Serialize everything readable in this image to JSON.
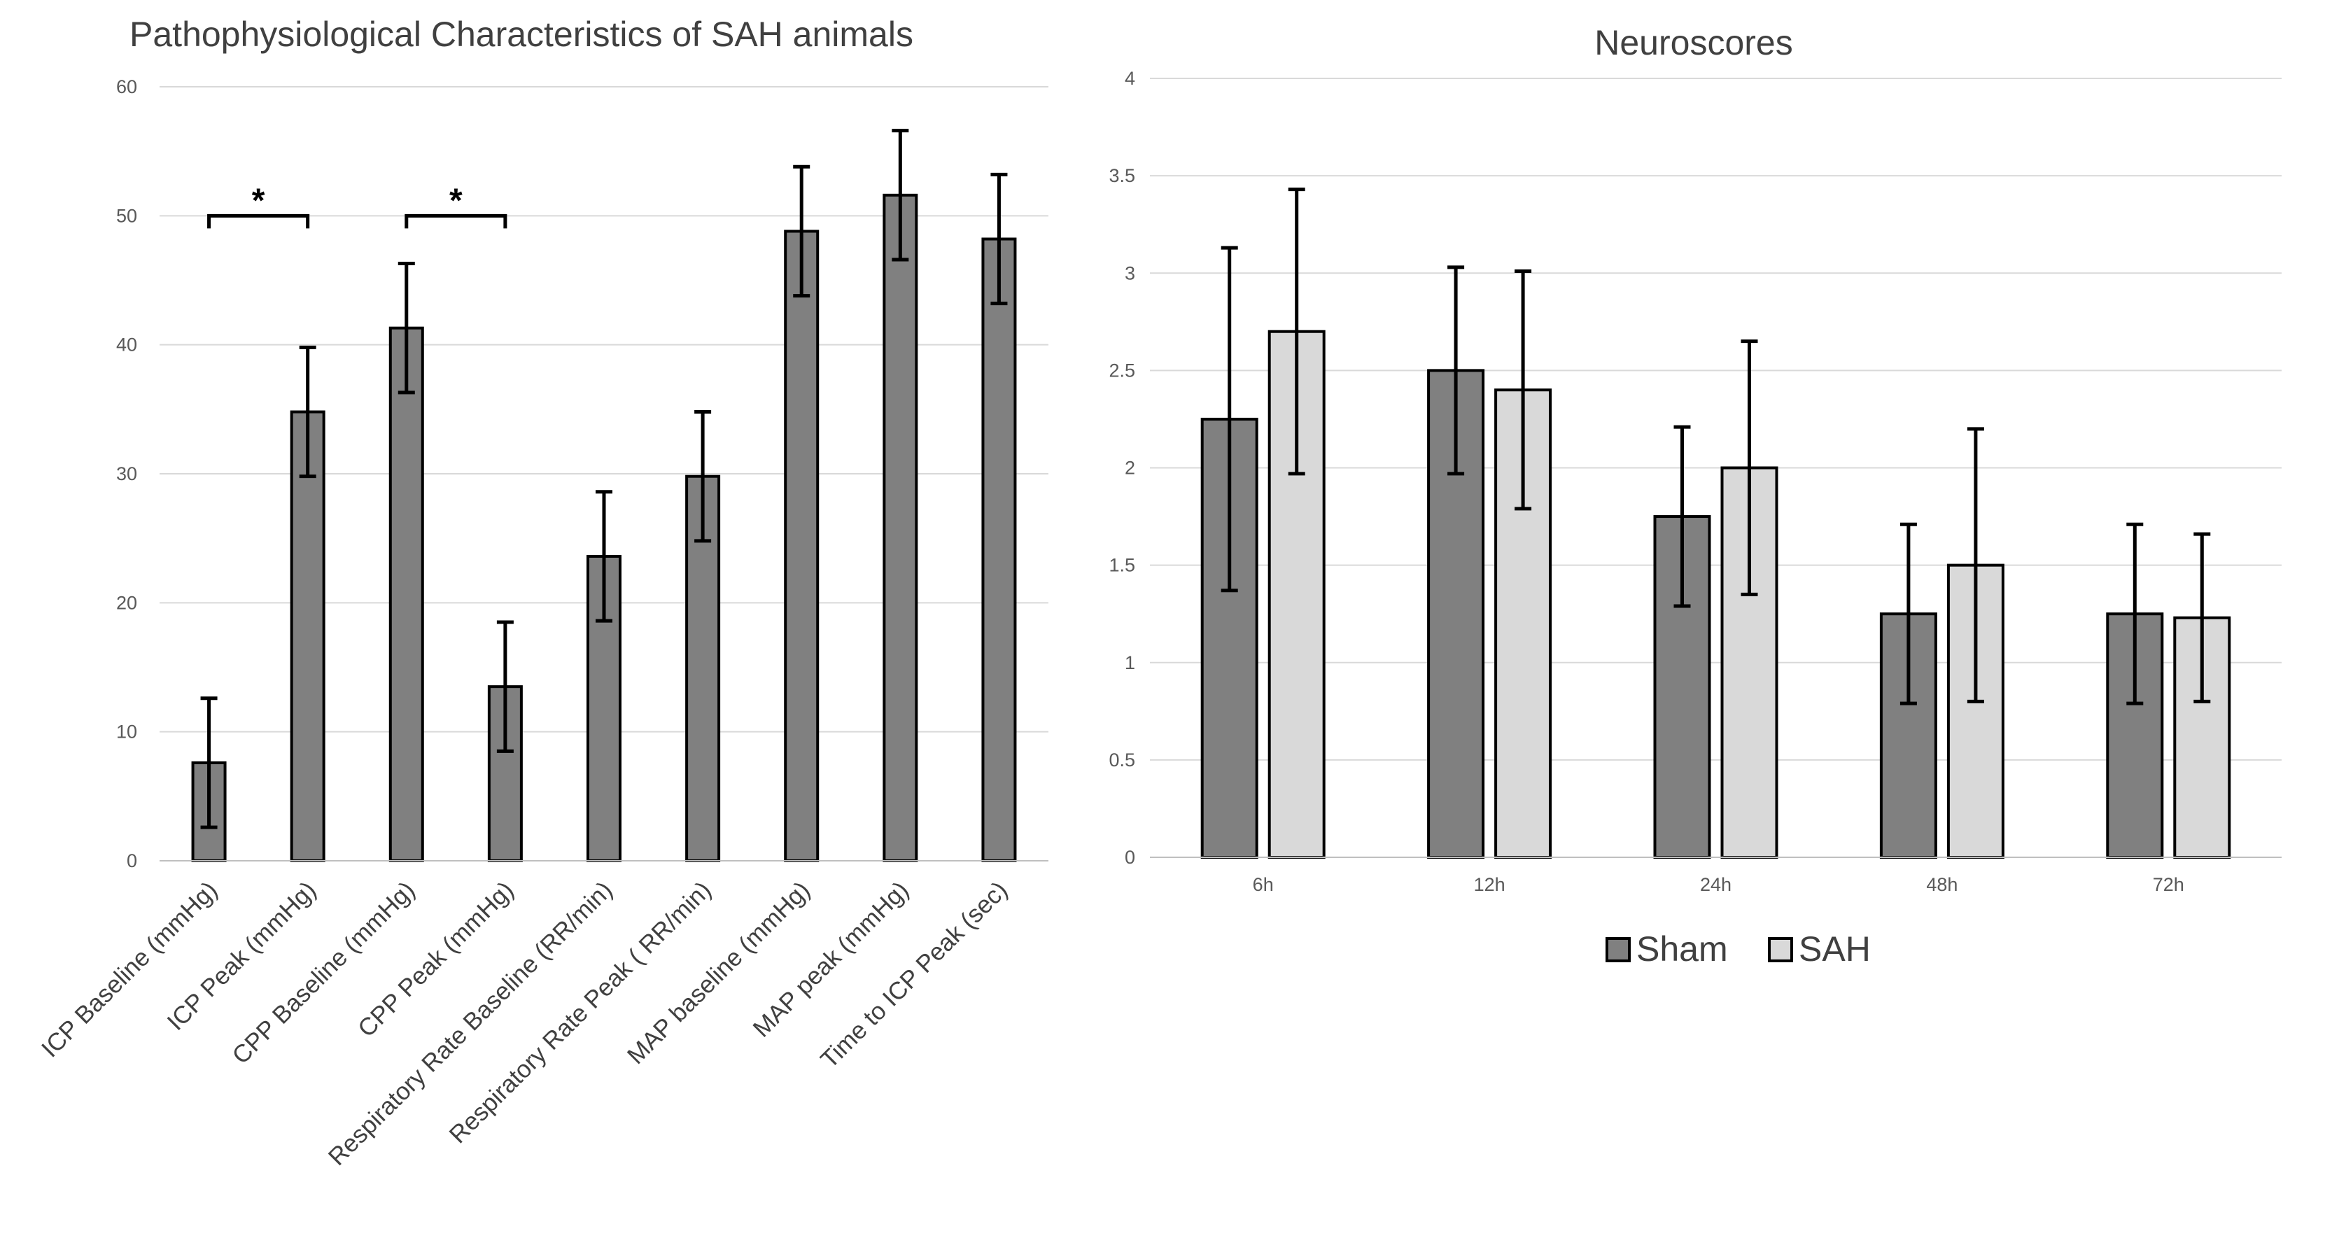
{
  "chart_data": [
    {
      "type": "bar",
      "title": "Pathophysiological Characteristics of SAH animals",
      "xlabel": "",
      "ylabel": "",
      "ylim": [
        0,
        60
      ],
      "yticks": [
        "0",
        "10",
        "20",
        "30",
        "40",
        "50",
        "60"
      ],
      "grid": true,
      "bar_color": "#808080",
      "categories": [
        "ICP Baseline (mmHg)",
        "ICP Peak (mmHg)",
        "CPP Baseline (mmHg)",
        "CPP Peak (mmHg)",
        "Respiratory Rate Baseline  (RR/min)",
        "Respiratory Rate Peak ( RR/min)",
        "MAP baseline (mmHg)",
        "MAP peak (mmHg)",
        "Time to ICP Peak (sec)"
      ],
      "values": [
        7.6,
        34.8,
        41.3,
        13.5,
        23.6,
        29.8,
        48.8,
        51.6,
        48.2
      ],
      "errors": [
        5,
        5,
        5,
        5,
        5,
        5,
        5,
        5,
        5
      ],
      "annotations": [
        {
          "text": "*",
          "from": 0,
          "to": 1,
          "y": 50
        },
        {
          "text": "*",
          "from": 2,
          "to": 3,
          "y": 50
        }
      ]
    },
    {
      "type": "bar",
      "title": "Neuroscores",
      "xlabel": "",
      "ylabel": "",
      "ylim": [
        0,
        4
      ],
      "yticks": [
        "0",
        "0.5",
        "1",
        "1.5",
        "2",
        "2.5",
        "3",
        "3.5",
        "4"
      ],
      "grid": true,
      "legend_position": "bottom",
      "categories": [
        "6h",
        "12h",
        "24h",
        "48h",
        "72h"
      ],
      "series": [
        {
          "name": "Sham",
          "color": "#808080",
          "values": [
            2.25,
            2.5,
            1.75,
            1.25,
            1.25
          ],
          "errors": [
            0.88,
            0.53,
            0.46,
            0.46,
            0.46
          ]
        },
        {
          "name": "SAH",
          "color": "#d9d9d9",
          "values": [
            2.7,
            2.4,
            2.0,
            1.5,
            1.23
          ],
          "errors": [
            0.73,
            0.61,
            0.65,
            0.7,
            0.43
          ]
        }
      ]
    }
  ]
}
